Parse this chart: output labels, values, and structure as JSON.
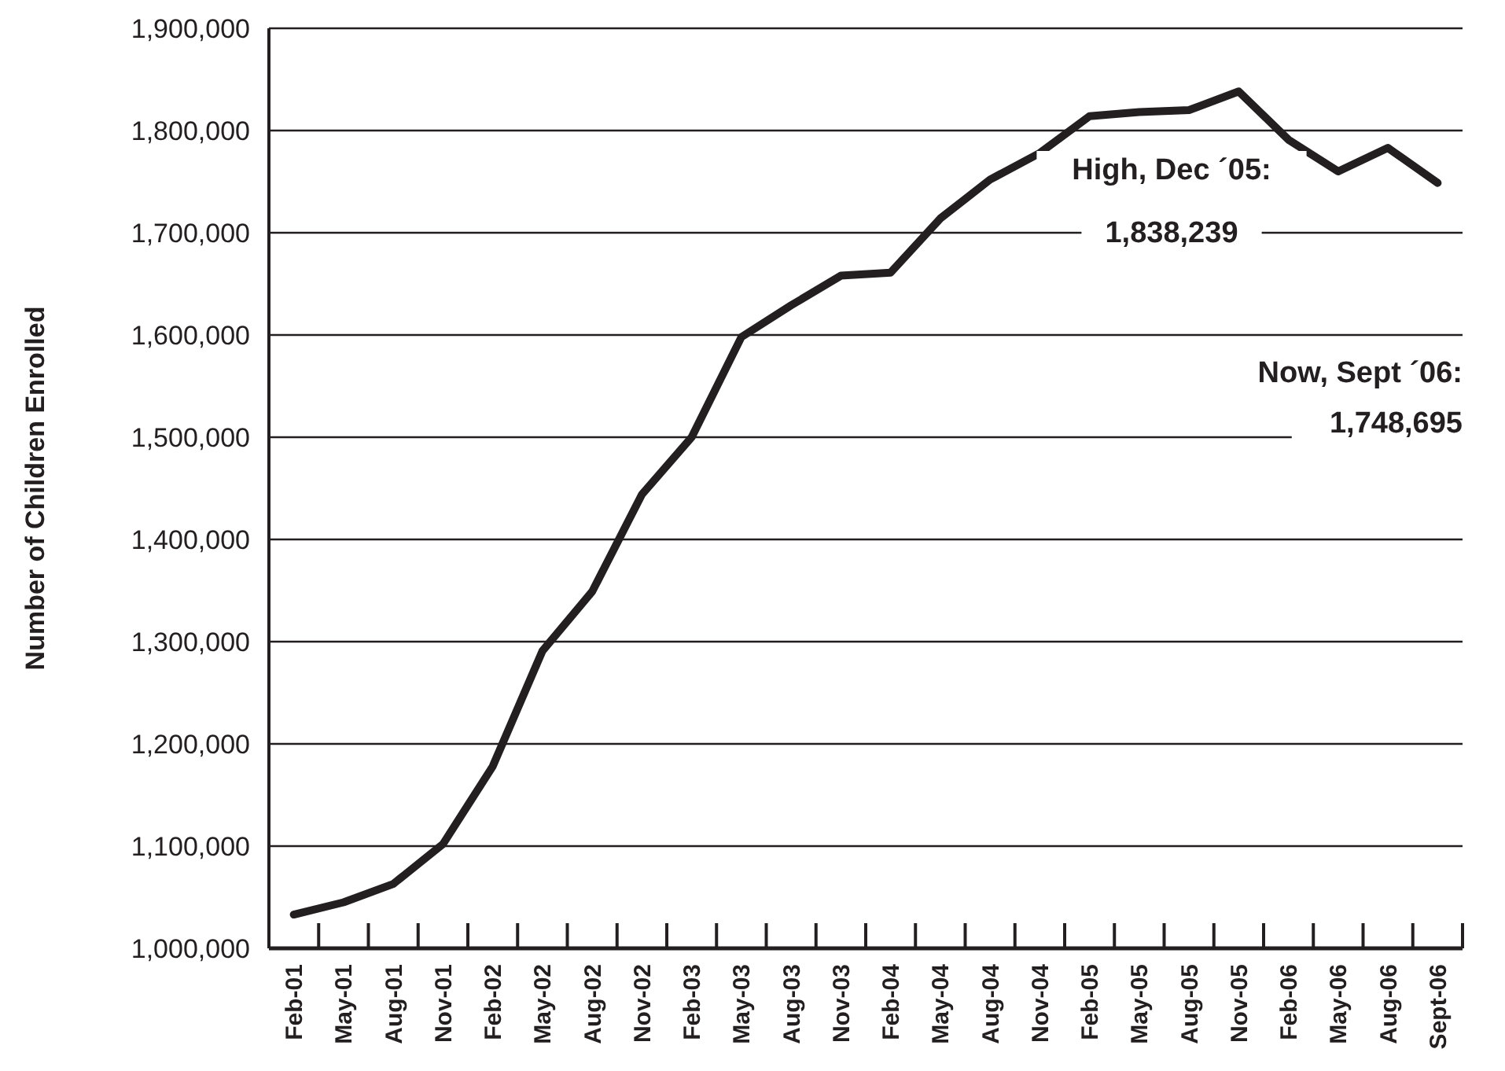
{
  "chart_data": {
    "type": "line",
    "ylabel": "Number of Children Enrolled",
    "categories": [
      "Feb-01",
      "May-01",
      "Aug-01",
      "Nov-01",
      "Feb-02",
      "May-02",
      "Aug-02",
      "Nov-02",
      "Feb-03",
      "May-03",
      "Aug-03",
      "Nov-03",
      "Feb-04",
      "May-04",
      "Aug-04",
      "Nov-04",
      "Feb-05",
      "May-05",
      "Aug-05",
      "Nov-05",
      "Feb-06",
      "May-06",
      "Aug-06",
      "Sept-06"
    ],
    "series": [
      {
        "color": "#231f20",
        "values": [
          1033000,
          1045000,
          1063000,
          1102000,
          1178000,
          1291000,
          1349000,
          1444000,
          1500000,
          1598000,
          1629000,
          1658000,
          1661000,
          1714000,
          1752000,
          1778000,
          1814000,
          1818000,
          1820000,
          1838239,
          1791000,
          1760000,
          1783000,
          1748695
        ]
      }
    ],
    "ylim": [
      1000000,
      1900000
    ],
    "yticks": [
      {
        "value": 1000000,
        "label": "1,000,000"
      },
      {
        "value": 1100000,
        "label": "1,100,000"
      },
      {
        "value": 1200000,
        "label": "1,200,000"
      },
      {
        "value": 1300000,
        "label": "1,300,000"
      },
      {
        "value": 1400000,
        "label": "1,400,000"
      },
      {
        "value": 1500000,
        "label": "1,500,000"
      },
      {
        "value": 1600000,
        "label": "1,600,000"
      },
      {
        "value": 1700000,
        "label": "1,700,000"
      },
      {
        "value": 1800000,
        "label": "1,800,000"
      },
      {
        "value": 1900000,
        "label": "1,900,000"
      }
    ],
    "grid": "y",
    "marker": "none",
    "line_style": "solid",
    "annotations": [
      "High, Dec ´05:\n1,838,239",
      "Now, Sept ´06:\n1,748,695"
    ]
  }
}
